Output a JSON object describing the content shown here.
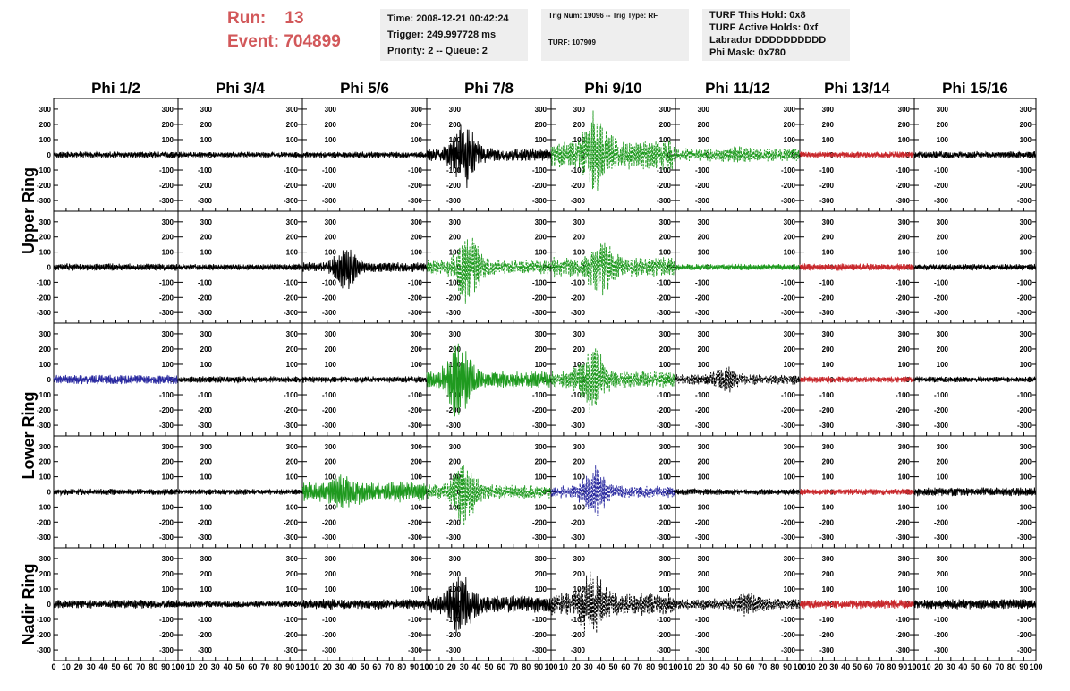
{
  "header": {
    "run_label": "Run:",
    "run_value": "13",
    "event_label": "Event:",
    "event_value": "704899",
    "time": "Time: 2008-12-21 00:42:24",
    "trigger": "Trigger: 249.997728 ms",
    "priority": "Priority: 2 -- Queue: 2",
    "trig_num": "Trig Num: 19096 -- Trig Type: RF",
    "turf": "TURF: 107909",
    "turf_this_hold": "TURF This Hold: 0x8",
    "turf_active_holds": "TURF Active Holds: 0xf",
    "labrador": "Labrador DDDDDDDDDD",
    "phi_mask": "Phi Mask: 0x780"
  },
  "colors": {
    "black": "#000000",
    "green": "#1f9a1f",
    "red": "#c8282c",
    "blue": "#2a2aa0",
    "header_text": "#d2585a",
    "box_bg": "#eeeeee"
  },
  "chart_data": {
    "type": "line",
    "columns": [
      "Phi 1/2",
      "Phi 3/4",
      "Phi 5/6",
      "Phi 7/8",
      "Phi 9/10",
      "Phi 11/12",
      "Phi 13/14",
      "Phi 15/16"
    ],
    "row_labels": [
      {
        "label": "Upper Ring",
        "rows": [
          0,
          1
        ]
      },
      {
        "label": "Lower Ring",
        "rows": [
          2,
          3
        ]
      },
      {
        "label": "Nadir Ring",
        "rows": [
          4
        ]
      }
    ],
    "xlim": [
      0,
      100
    ],
    "ylim": [
      -370,
      370
    ],
    "yticks": [
      -300,
      -200,
      -100,
      0,
      100,
      200,
      300
    ],
    "xticks": [
      0,
      10,
      20,
      30,
      40,
      50,
      60,
      70,
      80,
      90,
      100
    ],
    "panels": [
      [
        {
          "color": "black",
          "style": "solid",
          "amp": 22,
          "peak": 0,
          "burst": 0
        },
        {
          "color": "black",
          "style": "solid",
          "amp": 20,
          "peak": 0,
          "burst": 0
        },
        {
          "color": "black",
          "style": "solid",
          "amp": 22,
          "peak": 0,
          "burst": 0
        },
        {
          "color": "black",
          "style": "solid",
          "amp": 45,
          "peak": 270,
          "burst": 30
        },
        {
          "color": "green",
          "style": "dashed",
          "amp": 100,
          "peak": 340,
          "burst": 35
        },
        {
          "color": "green",
          "style": "dashed",
          "amp": 45,
          "peak": 70,
          "burst": 50
        },
        {
          "color": "red",
          "style": "solid",
          "amp": 22,
          "peak": 0,
          "burst": 0
        },
        {
          "color": "black",
          "style": "solid",
          "amp": 25,
          "peak": 0,
          "burst": 0
        }
      ],
      [
        {
          "color": "black",
          "style": "solid",
          "amp": 25,
          "peak": 0,
          "burst": 0
        },
        {
          "color": "black",
          "style": "solid",
          "amp": 22,
          "peak": 0,
          "burst": 0
        },
        {
          "color": "black",
          "style": "solid",
          "amp": 35,
          "peak": 180,
          "burst": 35
        },
        {
          "color": "green",
          "style": "dashed",
          "amp": 50,
          "peak": 290,
          "burst": 33
        },
        {
          "color": "green",
          "style": "dashed",
          "amp": 70,
          "peak": 230,
          "burst": 40
        },
        {
          "color": "green",
          "style": "solid",
          "amp": 22,
          "peak": 0,
          "burst": 0
        },
        {
          "color": "red",
          "style": "solid",
          "amp": 25,
          "peak": 0,
          "burst": 0
        },
        {
          "color": "black",
          "style": "solid",
          "amp": 22,
          "peak": 0,
          "burst": 0
        }
      ],
      [
        {
          "color": "blue",
          "style": "solid",
          "amp": 32,
          "peak": 0,
          "burst": 0
        },
        {
          "color": "black",
          "style": "solid",
          "amp": 22,
          "peak": 0,
          "burst": 0
        },
        {
          "color": "black",
          "style": "solid",
          "amp": 22,
          "peak": 0,
          "burst": 0
        },
        {
          "color": "green",
          "style": "solid",
          "amp": 60,
          "peak": 300,
          "burst": 26
        },
        {
          "color": "green",
          "style": "dashed",
          "amp": 60,
          "peak": 310,
          "burst": 33
        },
        {
          "color": "black",
          "style": "dashed",
          "amp": 35,
          "peak": 110,
          "burst": 40
        },
        {
          "color": "red",
          "style": "solid",
          "amp": 22,
          "peak": 0,
          "burst": 0
        },
        {
          "color": "black",
          "style": "solid",
          "amp": 20,
          "peak": 0,
          "burst": 0
        }
      ],
      [
        {
          "color": "black",
          "style": "solid",
          "amp": 22,
          "peak": 0,
          "burst": 0
        },
        {
          "color": "black",
          "style": "solid",
          "amp": 20,
          "peak": 0,
          "burst": 0
        },
        {
          "color": "green",
          "style": "solid",
          "amp": 70,
          "peak": 150,
          "burst": 35
        },
        {
          "color": "green",
          "style": "dashed",
          "amp": 50,
          "peak": 280,
          "burst": 30
        },
        {
          "color": "blue",
          "style": "dashed",
          "amp": 45,
          "peak": 200,
          "burst": 35
        },
        {
          "color": "black",
          "style": "solid",
          "amp": 22,
          "peak": 0,
          "burst": 0
        },
        {
          "color": "red",
          "style": "solid",
          "amp": 22,
          "peak": 0,
          "burst": 0
        },
        {
          "color": "black",
          "style": "solid",
          "amp": 30,
          "peak": 0,
          "burst": 0
        }
      ],
      [
        {
          "color": "black",
          "style": "solid",
          "amp": 30,
          "peak": 0,
          "burst": 0
        },
        {
          "color": "black",
          "style": "solid",
          "amp": 22,
          "peak": 0,
          "burst": 0
        },
        {
          "color": "black",
          "style": "solid",
          "amp": 35,
          "peak": 0,
          "burst": 0
        },
        {
          "color": "black",
          "style": "solid",
          "amp": 60,
          "peak": 250,
          "burst": 28
        },
        {
          "color": "black",
          "style": "dashed",
          "amp": 80,
          "peak": 270,
          "burst": 33
        },
        {
          "color": "black",
          "style": "dashed",
          "amp": 40,
          "peak": 100,
          "burst": 60
        },
        {
          "color": "red",
          "style": "solid",
          "amp": 32,
          "peak": 0,
          "burst": 0
        },
        {
          "color": "black",
          "style": "solid",
          "amp": 35,
          "peak": 0,
          "burst": 0
        }
      ]
    ]
  }
}
